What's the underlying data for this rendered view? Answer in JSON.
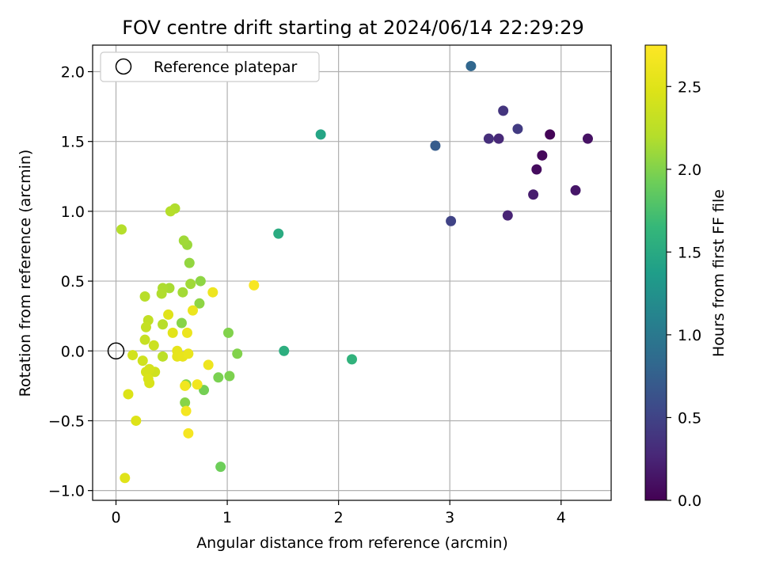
{
  "chart_data": {
    "type": "scatter",
    "title": "FOV centre drift starting at 2024/06/14 22:29:29",
    "xlabel": "Angular distance from reference (arcmin)",
    "ylabel": "Rotation from reference (arcmin)",
    "xlim": [
      -0.21,
      4.45
    ],
    "ylim": [
      -1.07,
      2.19
    ],
    "xticks": [
      0,
      1,
      2,
      3,
      4
    ],
    "xtick_labels": [
      "0",
      "1",
      "2",
      "3",
      "4"
    ],
    "yticks": [
      -1.0,
      -0.5,
      0.0,
      0.5,
      1.0,
      1.5,
      2.0
    ],
    "ytick_labels": [
      "−1.0",
      "−0.5",
      "0.0",
      "0.5",
      "1.0",
      "1.5",
      "2.0"
    ],
    "grid": true,
    "legend": {
      "position": "upper-left",
      "entries": [
        "Reference platepar"
      ]
    },
    "reference_point": {
      "x": 0,
      "y": 0,
      "label": "Reference platepar"
    },
    "colorbar": {
      "label": "Hours from first FF file",
      "colormap": "viridis",
      "range": [
        0.0,
        2.75
      ],
      "ticks": [
        0.0,
        0.5,
        1.0,
        1.5,
        2.0,
        2.5
      ],
      "tick_labels": [
        "0.0",
        "0.5",
        "1.0",
        "1.5",
        "2.0",
        "2.5"
      ]
    },
    "points": [
      {
        "x": 3.9,
        "y": 1.55,
        "c": 0.02
      },
      {
        "x": 3.83,
        "y": 1.4,
        "c": 0.05
      },
      {
        "x": 3.78,
        "y": 1.3,
        "c": 0.08
      },
      {
        "x": 4.24,
        "y": 1.52,
        "c": 0.12
      },
      {
        "x": 4.13,
        "y": 1.15,
        "c": 0.15
      },
      {
        "x": 3.75,
        "y": 1.12,
        "c": 0.2
      },
      {
        "x": 3.52,
        "y": 0.97,
        "c": 0.25
      },
      {
        "x": 3.44,
        "y": 1.52,
        "c": 0.28
      },
      {
        "x": 3.35,
        "y": 1.52,
        "c": 0.33
      },
      {
        "x": 3.48,
        "y": 1.72,
        "c": 0.38
      },
      {
        "x": 3.61,
        "y": 1.59,
        "c": 0.43
      },
      {
        "x": 3.01,
        "y": 0.93,
        "c": 0.5
      },
      {
        "x": 2.87,
        "y": 1.47,
        "c": 0.72
      },
      {
        "x": 3.19,
        "y": 2.04,
        "c": 0.82
      },
      {
        "x": 1.84,
        "y": 1.55,
        "c": 1.45
      },
      {
        "x": 1.46,
        "y": 0.84,
        "c": 1.52
      },
      {
        "x": 1.51,
        "y": 0.0,
        "c": 1.55
      },
      {
        "x": 2.12,
        "y": -0.06,
        "c": 1.6
      },
      {
        "x": 0.94,
        "y": -0.83,
        "c": 1.92
      },
      {
        "x": 0.79,
        "y": -0.28,
        "c": 1.95
      },
      {
        "x": 0.92,
        "y": -0.19,
        "c": 1.97
      },
      {
        "x": 1.02,
        "y": -0.18,
        "c": 1.98
      },
      {
        "x": 1.09,
        "y": -0.02,
        "c": 2.0
      },
      {
        "x": 1.01,
        "y": 0.13,
        "c": 2.0
      },
      {
        "x": 0.62,
        "y": -0.37,
        "c": 2.02
      },
      {
        "x": 0.63,
        "y": -0.24,
        "c": 2.02
      },
      {
        "x": 0.59,
        "y": 0.2,
        "c": 2.02
      },
      {
        "x": 0.76,
        "y": 0.5,
        "c": 2.05
      },
      {
        "x": 0.75,
        "y": 0.34,
        "c": 2.05
      },
      {
        "x": 0.66,
        "y": 0.63,
        "c": 2.07
      },
      {
        "x": 0.64,
        "y": 0.76,
        "c": 2.1
      },
      {
        "x": 0.61,
        "y": 0.79,
        "c": 2.12
      },
      {
        "x": 0.67,
        "y": 0.48,
        "c": 2.12
      },
      {
        "x": 0.6,
        "y": 0.42,
        "c": 2.13
      },
      {
        "x": 0.48,
        "y": 0.45,
        "c": 2.15
      },
      {
        "x": 0.42,
        "y": 0.45,
        "c": 2.17
      },
      {
        "x": 0.41,
        "y": 0.41,
        "c": 2.18
      },
      {
        "x": 0.53,
        "y": 1.02,
        "c": 2.18
      },
      {
        "x": 0.49,
        "y": 1.0,
        "c": 2.2
      },
      {
        "x": 0.05,
        "y": 0.87,
        "c": 2.2
      },
      {
        "x": 0.26,
        "y": 0.39,
        "c": 2.22
      },
      {
        "x": 0.42,
        "y": 0.19,
        "c": 2.22
      },
      {
        "x": 0.42,
        "y": -0.04,
        "c": 2.25
      },
      {
        "x": 0.29,
        "y": 0.22,
        "c": 2.28
      },
      {
        "x": 0.27,
        "y": 0.17,
        "c": 2.3
      },
      {
        "x": 0.26,
        "y": 0.08,
        "c": 2.32
      },
      {
        "x": 0.34,
        "y": 0.04,
        "c": 2.35
      },
      {
        "x": 0.24,
        "y": -0.07,
        "c": 2.38
      },
      {
        "x": 0.35,
        "y": -0.15,
        "c": 2.38
      },
      {
        "x": 0.15,
        "y": -0.03,
        "c": 2.4
      },
      {
        "x": 0.27,
        "y": -0.15,
        "c": 2.42
      },
      {
        "x": 0.3,
        "y": -0.13,
        "c": 2.42
      },
      {
        "x": 0.29,
        "y": -0.2,
        "c": 2.45
      },
      {
        "x": 0.3,
        "y": -0.23,
        "c": 2.45
      },
      {
        "x": 0.11,
        "y": -0.31,
        "c": 2.47
      },
      {
        "x": 0.18,
        "y": -0.5,
        "c": 2.48
      },
      {
        "x": 0.08,
        "y": -0.91,
        "c": 2.5
      },
      {
        "x": 0.47,
        "y": 0.26,
        "c": 2.5
      },
      {
        "x": 0.51,
        "y": 0.13,
        "c": 2.52
      },
      {
        "x": 0.55,
        "y": 0.0,
        "c": 2.55
      },
      {
        "x": 0.55,
        "y": -0.04,
        "c": 2.55
      },
      {
        "x": 0.6,
        "y": -0.04,
        "c": 2.57
      },
      {
        "x": 0.65,
        "y": -0.02,
        "c": 2.58
      },
      {
        "x": 0.64,
        "y": 0.13,
        "c": 2.6
      },
      {
        "x": 0.69,
        "y": 0.29,
        "c": 2.6
      },
      {
        "x": 0.87,
        "y": 0.42,
        "c": 2.62
      },
      {
        "x": 0.83,
        "y": -0.1,
        "c": 2.62
      },
      {
        "x": 0.73,
        "y": -0.24,
        "c": 2.65
      },
      {
        "x": 0.62,
        "y": -0.25,
        "c": 2.65
      },
      {
        "x": 0.63,
        "y": -0.43,
        "c": 2.67
      },
      {
        "x": 0.65,
        "y": -0.59,
        "c": 2.68
      },
      {
        "x": 1.24,
        "y": 0.47,
        "c": 2.7
      }
    ]
  }
}
